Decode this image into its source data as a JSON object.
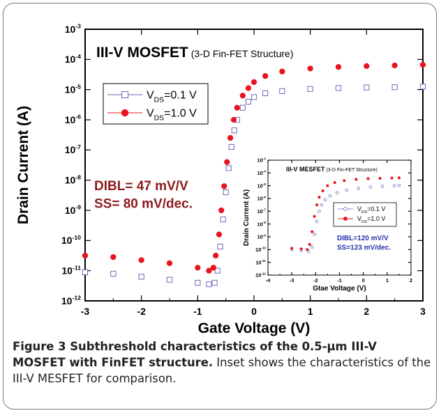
{
  "chart_data": [
    {
      "type": "scatter",
      "title_main": "III-V MOSFET",
      "title_sub": "(3-D Fin-FET Structure)",
      "xlabel": "Gate Voltage (V)",
      "ylabel": "Drain Current (A)",
      "xlim": [
        -3,
        3
      ],
      "ylim_log10": [
        -12,
        -3
      ],
      "yscale": "log",
      "x_ticks": [
        "-3",
        "-2",
        "-1",
        "0",
        "1",
        "2",
        "3"
      ],
      "y_tick_exponents": [
        "-3",
        "-4",
        "-5",
        "-6",
        "-7",
        "-8",
        "-9",
        "-10",
        "-11",
        "-12"
      ],
      "legend_placement": "top-left",
      "series": [
        {
          "name": "VDS=0.1 V",
          "legend_main": "V",
          "legend_sub": "DS",
          "legend_val": "=0.1 V",
          "marker": "open-square",
          "color": "#6a6ab8",
          "points": [
            [
              -3.0,
              -11.05
            ],
            [
              -2.5,
              -11.1
            ],
            [
              -2.0,
              -11.2
            ],
            [
              -1.5,
              -11.3
            ],
            [
              -1.0,
              -11.4
            ],
            [
              -0.8,
              -11.45
            ],
            [
              -0.7,
              -11.4
            ],
            [
              -0.65,
              -11.0
            ],
            [
              -0.6,
              -10.2
            ],
            [
              -0.55,
              -9.3
            ],
            [
              -0.5,
              -8.4
            ],
            [
              -0.45,
              -7.6
            ],
            [
              -0.4,
              -6.9
            ],
            [
              -0.35,
              -6.35
            ],
            [
              -0.3,
              -6.0
            ],
            [
              -0.2,
              -5.6
            ],
            [
              -0.1,
              -5.4
            ],
            [
              0.0,
              -5.25
            ],
            [
              0.2,
              -5.12
            ],
            [
              0.5,
              -5.05
            ],
            [
              1.0,
              -4.98
            ],
            [
              1.5,
              -4.95
            ],
            [
              2.0,
              -4.93
            ],
            [
              2.5,
              -4.92
            ],
            [
              3.0,
              -4.9
            ]
          ]
        },
        {
          "name": "VDS=1.0 V",
          "legend_main": "V",
          "legend_sub": "DS",
          "legend_val": "=1.0 V",
          "marker": "filled-circle",
          "color": "#e8141e",
          "points": [
            [
              -3.0,
              -10.5
            ],
            [
              -2.5,
              -10.55
            ],
            [
              -2.0,
              -10.65
            ],
            [
              -1.5,
              -10.75
            ],
            [
              -1.0,
              -10.9
            ],
            [
              -0.8,
              -11.0
            ],
            [
              -0.72,
              -10.9
            ],
            [
              -0.68,
              -10.5
            ],
            [
              -0.62,
              -9.8
            ],
            [
              -0.58,
              -9.0
            ],
            [
              -0.53,
              -8.2
            ],
            [
              -0.48,
              -7.4
            ],
            [
              -0.42,
              -6.6
            ],
            [
              -0.36,
              -6.0
            ],
            [
              -0.3,
              -5.6
            ],
            [
              -0.2,
              -5.2
            ],
            [
              -0.1,
              -4.95
            ],
            [
              0.0,
              -4.75
            ],
            [
              0.2,
              -4.55
            ],
            [
              0.5,
              -4.4
            ],
            [
              1.0,
              -4.3
            ],
            [
              1.5,
              -4.25
            ],
            [
              2.0,
              -4.22
            ],
            [
              2.5,
              -4.2
            ],
            [
              3.0,
              -4.18
            ]
          ]
        }
      ],
      "annotation_line1": "DIBL= 47 mV/V",
      "annotation_line2": "SS= 80 mV/dec.",
      "annotation_color": "#8b1a1a"
    },
    {
      "type": "scatter",
      "title_main": "III-V MESFET",
      "title_sub": "(3-D Fin-FET Structure)",
      "xlabel": "Gtae Voltage (V)",
      "ylabel": "Drain Current (A)",
      "xlim": [
        -4,
        2
      ],
      "ylim_log10": [
        -12,
        -3
      ],
      "yscale": "log",
      "x_ticks": [
        "-4",
        "-3",
        "-2",
        "-1",
        "0",
        "1",
        "2"
      ],
      "y_tick_exponents": [
        "-3",
        "-4",
        "-5",
        "-6",
        "-7",
        "-8",
        "-9",
        "-10",
        "-11",
        "-12"
      ],
      "legend_placement": "center-right",
      "series": [
        {
          "name": "VDS=0.1 V",
          "legend_main": "V",
          "legend_sub": "DS",
          "legend_val": "=0.1 V",
          "marker": "open-circle",
          "color": "#8a8ad8",
          "points": [
            [
              -3.0,
              -10.0
            ],
            [
              -2.6,
              -10.1
            ],
            [
              -2.3,
              -10.15
            ],
            [
              -2.15,
              -9.8
            ],
            [
              -2.05,
              -8.8
            ],
            [
              -1.95,
              -7.8
            ],
            [
              -1.85,
              -7.0
            ],
            [
              -1.75,
              -6.5
            ],
            [
              -1.6,
              -6.1
            ],
            [
              -1.4,
              -5.8
            ],
            [
              -1.1,
              -5.55
            ],
            [
              -0.7,
              -5.35
            ],
            [
              -0.2,
              -5.2
            ],
            [
              0.3,
              -5.1
            ],
            [
              0.8,
              -5.05
            ],
            [
              1.3,
              -5.0
            ],
            [
              1.5,
              -4.98
            ]
          ]
        },
        {
          "name": "VDS=1.0 V",
          "legend_main": "V",
          "legend_sub": "DS",
          "legend_val": "=1.0 V",
          "marker": "filled-circle",
          "color": "#e8141e",
          "points": [
            [
              -3.0,
              -9.9
            ],
            [
              -2.6,
              -9.95
            ],
            [
              -2.35,
              -10.0
            ],
            [
              -2.25,
              -9.6
            ],
            [
              -2.15,
              -8.6
            ],
            [
              -2.05,
              -7.4
            ],
            [
              -1.95,
              -6.5
            ],
            [
              -1.85,
              -5.9
            ],
            [
              -1.7,
              -5.4
            ],
            [
              -1.5,
              -5.0
            ],
            [
              -1.2,
              -4.75
            ],
            [
              -0.8,
              -4.6
            ],
            [
              -0.3,
              -4.5
            ],
            [
              0.2,
              -4.45
            ],
            [
              0.7,
              -4.42
            ],
            [
              1.2,
              -4.4
            ],
            [
              1.5,
              -4.38
            ]
          ]
        }
      ],
      "annotation_line1": "DIBL=120 mV/V",
      "annotation_line2": "SS=123 mV/dec.",
      "annotation_color": "#2233a8"
    }
  ],
  "caption": {
    "bold": "Figure 3 Subthreshold characteristics of the 0.5-µm III-V MOSFET with FinFET structure.",
    "normal": " Inset shows the characteristics of the III-V MESFET for comparison."
  }
}
